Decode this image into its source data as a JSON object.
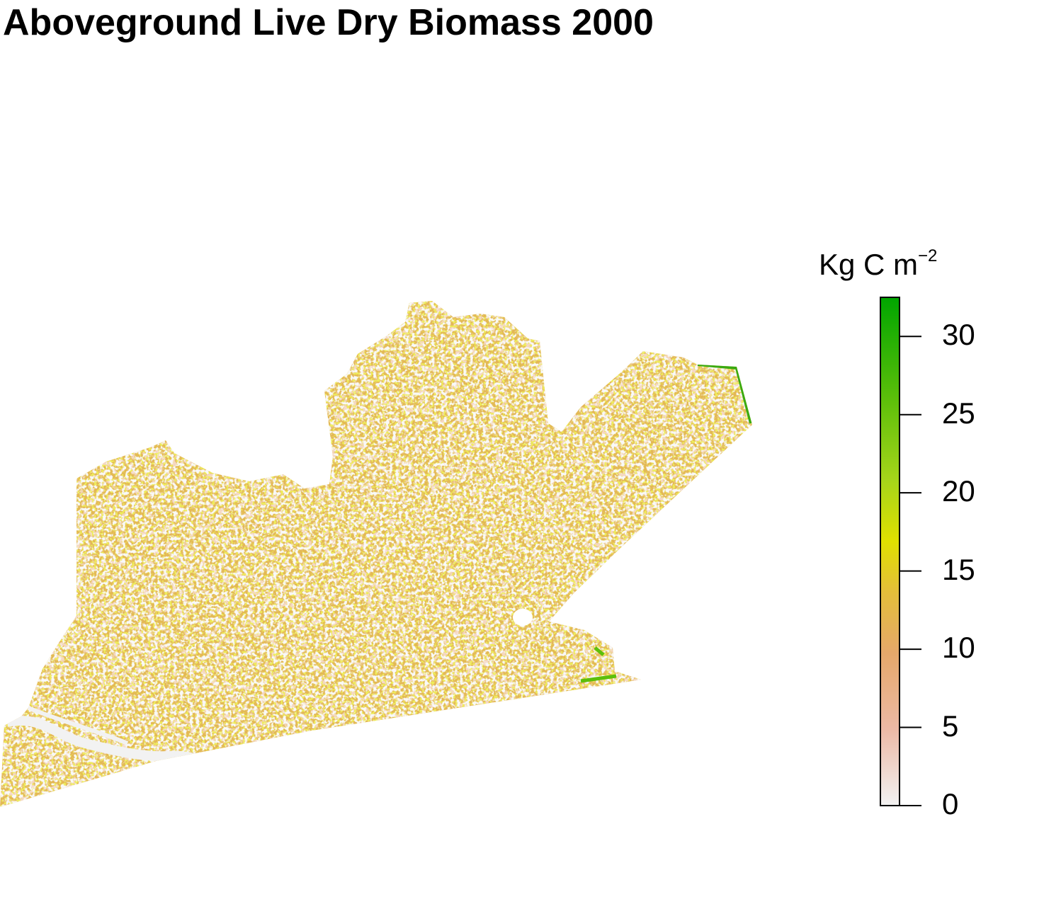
{
  "title": "Aboveground Live Dry Biomass 2000",
  "legend": {
    "title_main": "Kg C m",
    "title_exponent": "−2",
    "ticks": [
      "0",
      "5",
      "10",
      "15",
      "20",
      "25",
      "30"
    ],
    "tick_values": [
      0,
      5,
      10,
      15,
      20,
      25,
      30
    ],
    "range": [
      0,
      32.5
    ],
    "colors": [
      "#f2f2f2",
      "#ecb9a5",
      "#e5a86a",
      "#e4be3a",
      "#e0e000",
      "#a6d51a",
      "#5cbf0a",
      "#00a600"
    ]
  },
  "map": {
    "dominant_colors": [
      "#e5b84b",
      "#e7ad80",
      "#dfd32a",
      "#f2f2f2",
      "#5cbf0a"
    ]
  }
}
